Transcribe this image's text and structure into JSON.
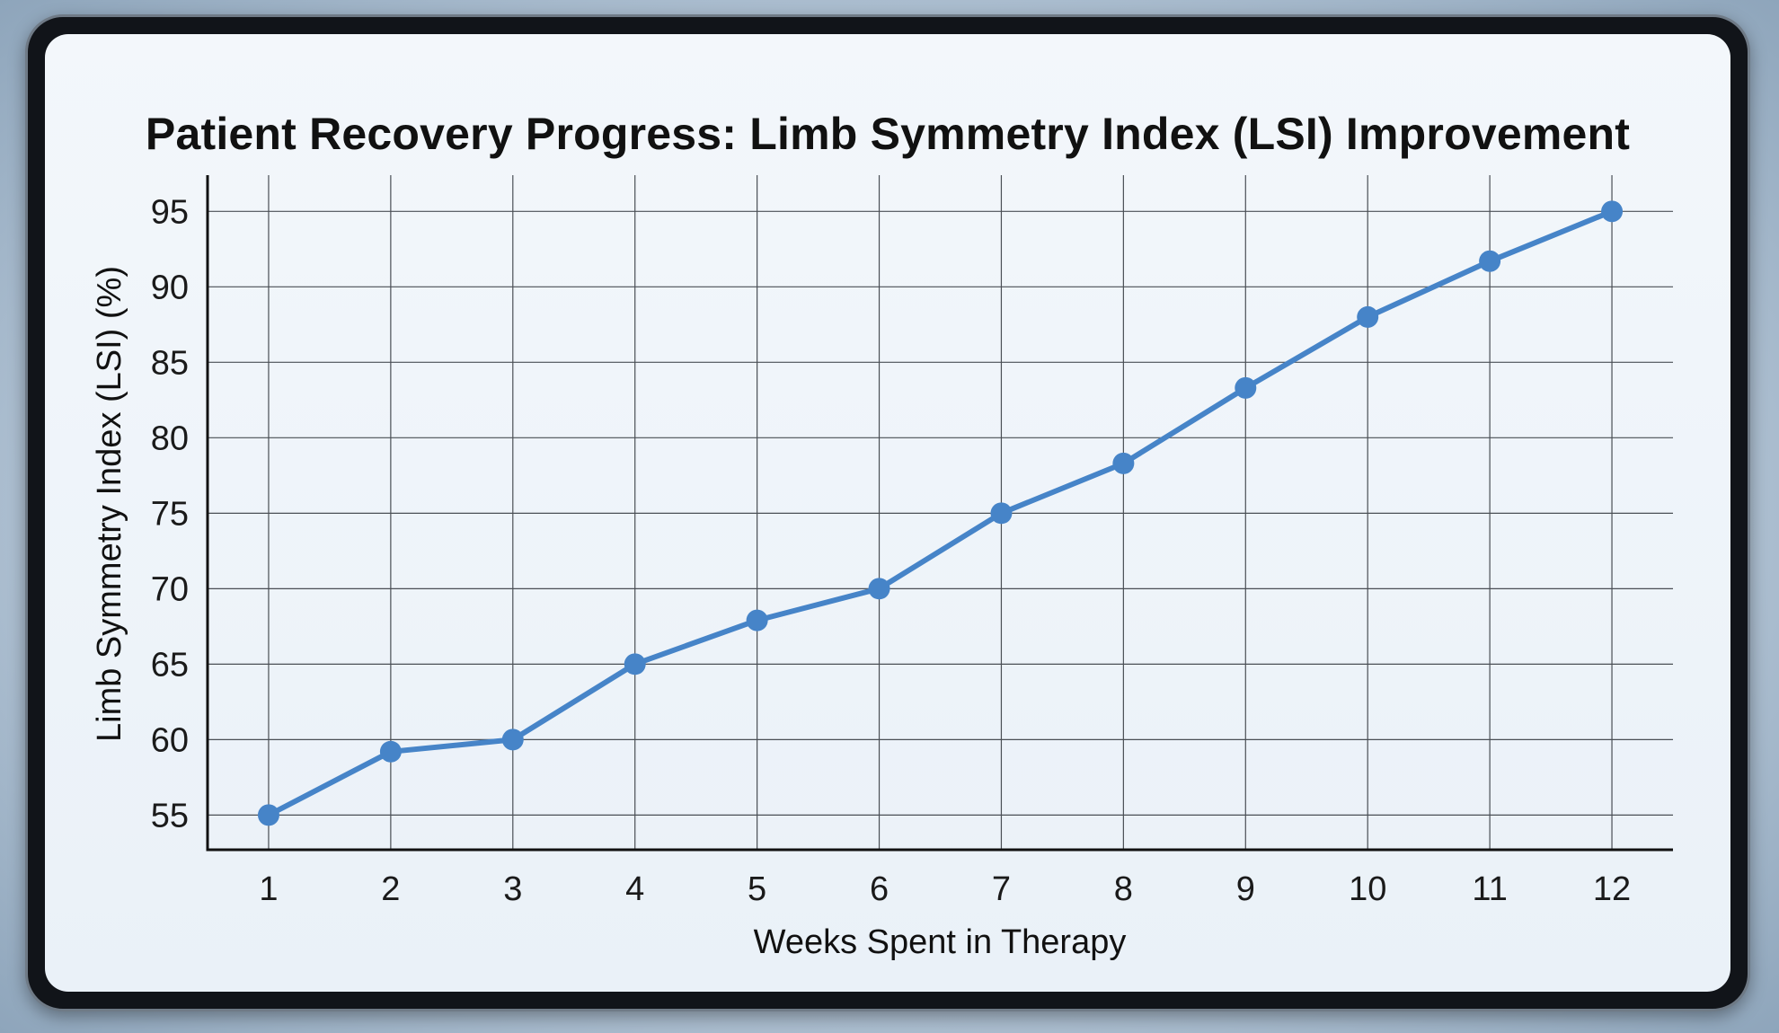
{
  "title": "Patient Recovery Progress: Limb Symmetry Index (LSI) Improvement",
  "colors": {
    "series": "#4684c8",
    "grid": "#4a4f55",
    "axis": "#111111"
  },
  "chart_data": {
    "type": "line",
    "title": "Patient Recovery Progress: Limb Symmetry Index (LSI) Improvement",
    "xlabel": "Weeks Spent in Therapy",
    "ylabel": "Limb Symmetry Index (LSI) (%)",
    "x": [
      1,
      2,
      3,
      4,
      5,
      6,
      7,
      8,
      9,
      10,
      11,
      12
    ],
    "series": [
      {
        "values": [
          55,
          59.2,
          60,
          65,
          67.9,
          70,
          75,
          78.3,
          83.3,
          88,
          91.7,
          95
        ]
      }
    ],
    "x_ticks": [
      "1",
      "2",
      "3",
      "4",
      "5",
      "6",
      "7",
      "8",
      "9",
      "10",
      "11",
      "12"
    ],
    "y_ticks": [
      "55",
      "60",
      "65",
      "70",
      "75",
      "80",
      "85",
      "90",
      "95"
    ],
    "xlim": [
      0.5,
      12.5
    ],
    "ylim": [
      52.7,
      97.4
    ],
    "grid": true,
    "legend": "none"
  }
}
